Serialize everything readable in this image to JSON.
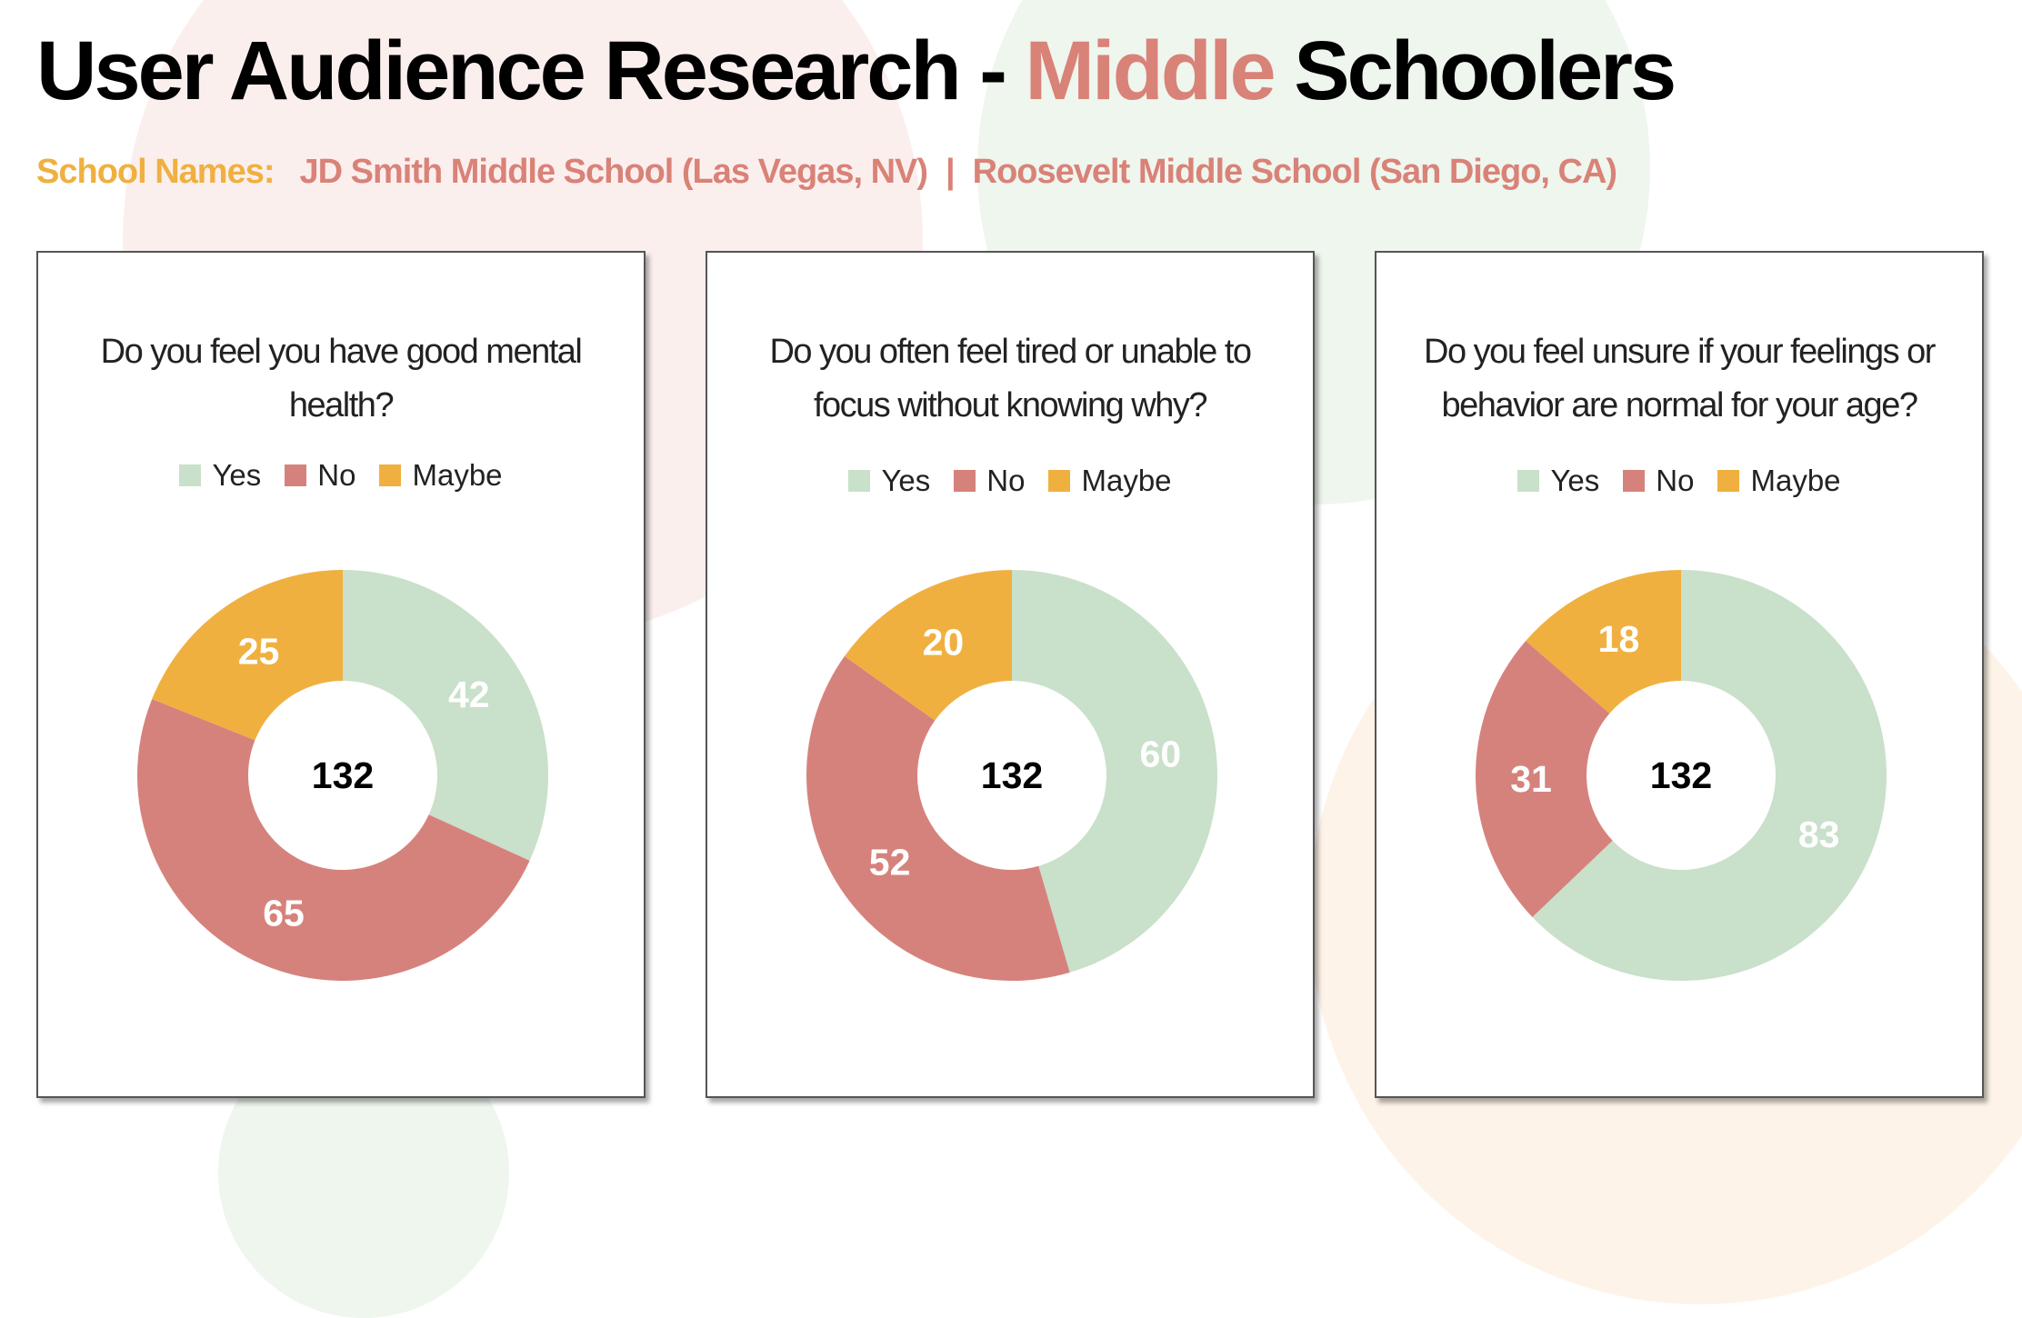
{
  "title": {
    "part1": "User Audience Research - ",
    "highlight": "Middle",
    "part2": " Schoolers"
  },
  "subtitle": {
    "label": "School Names:",
    "school1": "JD Smith Middle School (Las Vegas, NV)",
    "separator": "|",
    "school2": "Roosevelt Middle School (San Diego, CA)"
  },
  "colors": {
    "highlight": "#d98278",
    "label": "#f0b040",
    "yes": "#c9e0ca",
    "no": "#d6827c",
    "maybe": "#f0b040",
    "bg_pink": "#fbefee",
    "bg_green": "#eef6ee",
    "bg_peach": "#fdf3e8"
  },
  "legend": [
    "Yes",
    "No",
    "Maybe"
  ],
  "chart_data": [
    {
      "type": "pie",
      "title": "Do you feel you have good mental health?",
      "categories": [
        "Yes",
        "No",
        "Maybe"
      ],
      "values": [
        42,
        65,
        25
      ],
      "total": "132"
    },
    {
      "type": "pie",
      "title": "Do you often feel tired or unable to focus without knowing why?",
      "categories": [
        "Yes",
        "No",
        "Maybe"
      ],
      "values": [
        60,
        52,
        20
      ],
      "total": "132"
    },
    {
      "type": "pie",
      "title": "Do you feel unsure if your feelings or behavior are normal for your age?",
      "categories": [
        "Yes",
        "No",
        "Maybe"
      ],
      "values": [
        83,
        31,
        18
      ],
      "total": "132"
    }
  ]
}
